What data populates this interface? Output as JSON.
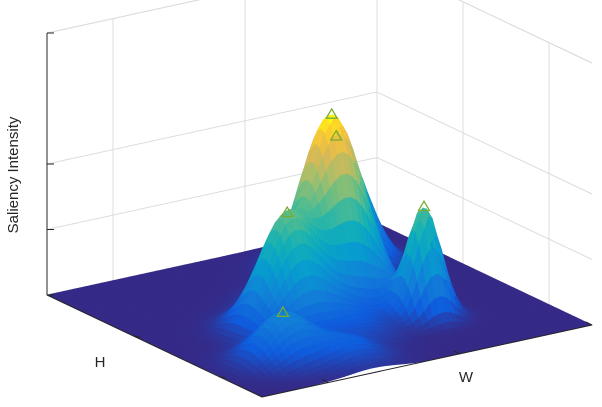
{
  "chart_data": {
    "type": "surface",
    "title": "",
    "xlabel": "W",
    "ylabel": "H",
    "zlabel": "Saliency Intensity",
    "xlim": [
      0,
      1
    ],
    "ylim": [
      0,
      1
    ],
    "zlim": [
      0,
      1
    ],
    "z_ticks": [
      0,
      0.25,
      0.5,
      1
    ],
    "x_ticks": [
      0.2,
      0.6,
      1
    ],
    "y_ticks": [
      0.2,
      0.6
    ],
    "grid": true,
    "colormap": "parula",
    "peaks": [
      {
        "x": 0.2,
        "y": 0.21,
        "amplitude": 0.18,
        "sigma": 0.07
      },
      {
        "x": 0.35,
        "y": 0.42,
        "amplitude": 0.42,
        "sigma": 0.075
      },
      {
        "x": 0.55,
        "y": 0.52,
        "amplitude": 0.72,
        "sigma": 0.085
      },
      {
        "x": 0.72,
        "y": 0.76,
        "amplitude": 0.5,
        "sigma": 0.075
      },
      {
        "x": 0.68,
        "y": 0.29,
        "amplitude": 0.42,
        "sigma": 0.045
      },
      {
        "x": 0.34,
        "y": 0.12,
        "amplitude": 0.08,
        "sigma": 0.07
      },
      {
        "x": 0.47,
        "y": 0.27,
        "amplitude": 0.06,
        "sigma": 0.07
      }
    ],
    "peak_markers": [
      {
        "x": 0.2,
        "y": 0.21
      },
      {
        "x": 0.35,
        "y": 0.42
      },
      {
        "x": 0.55,
        "y": 0.52
      },
      {
        "x": 0.72,
        "y": 0.76
      },
      {
        "x": 0.68,
        "y": 0.29
      }
    ],
    "colors": {
      "marker": "#77ac30",
      "grid": "#dcdcdc",
      "axis": "#262626",
      "background": "#ffffff"
    }
  }
}
